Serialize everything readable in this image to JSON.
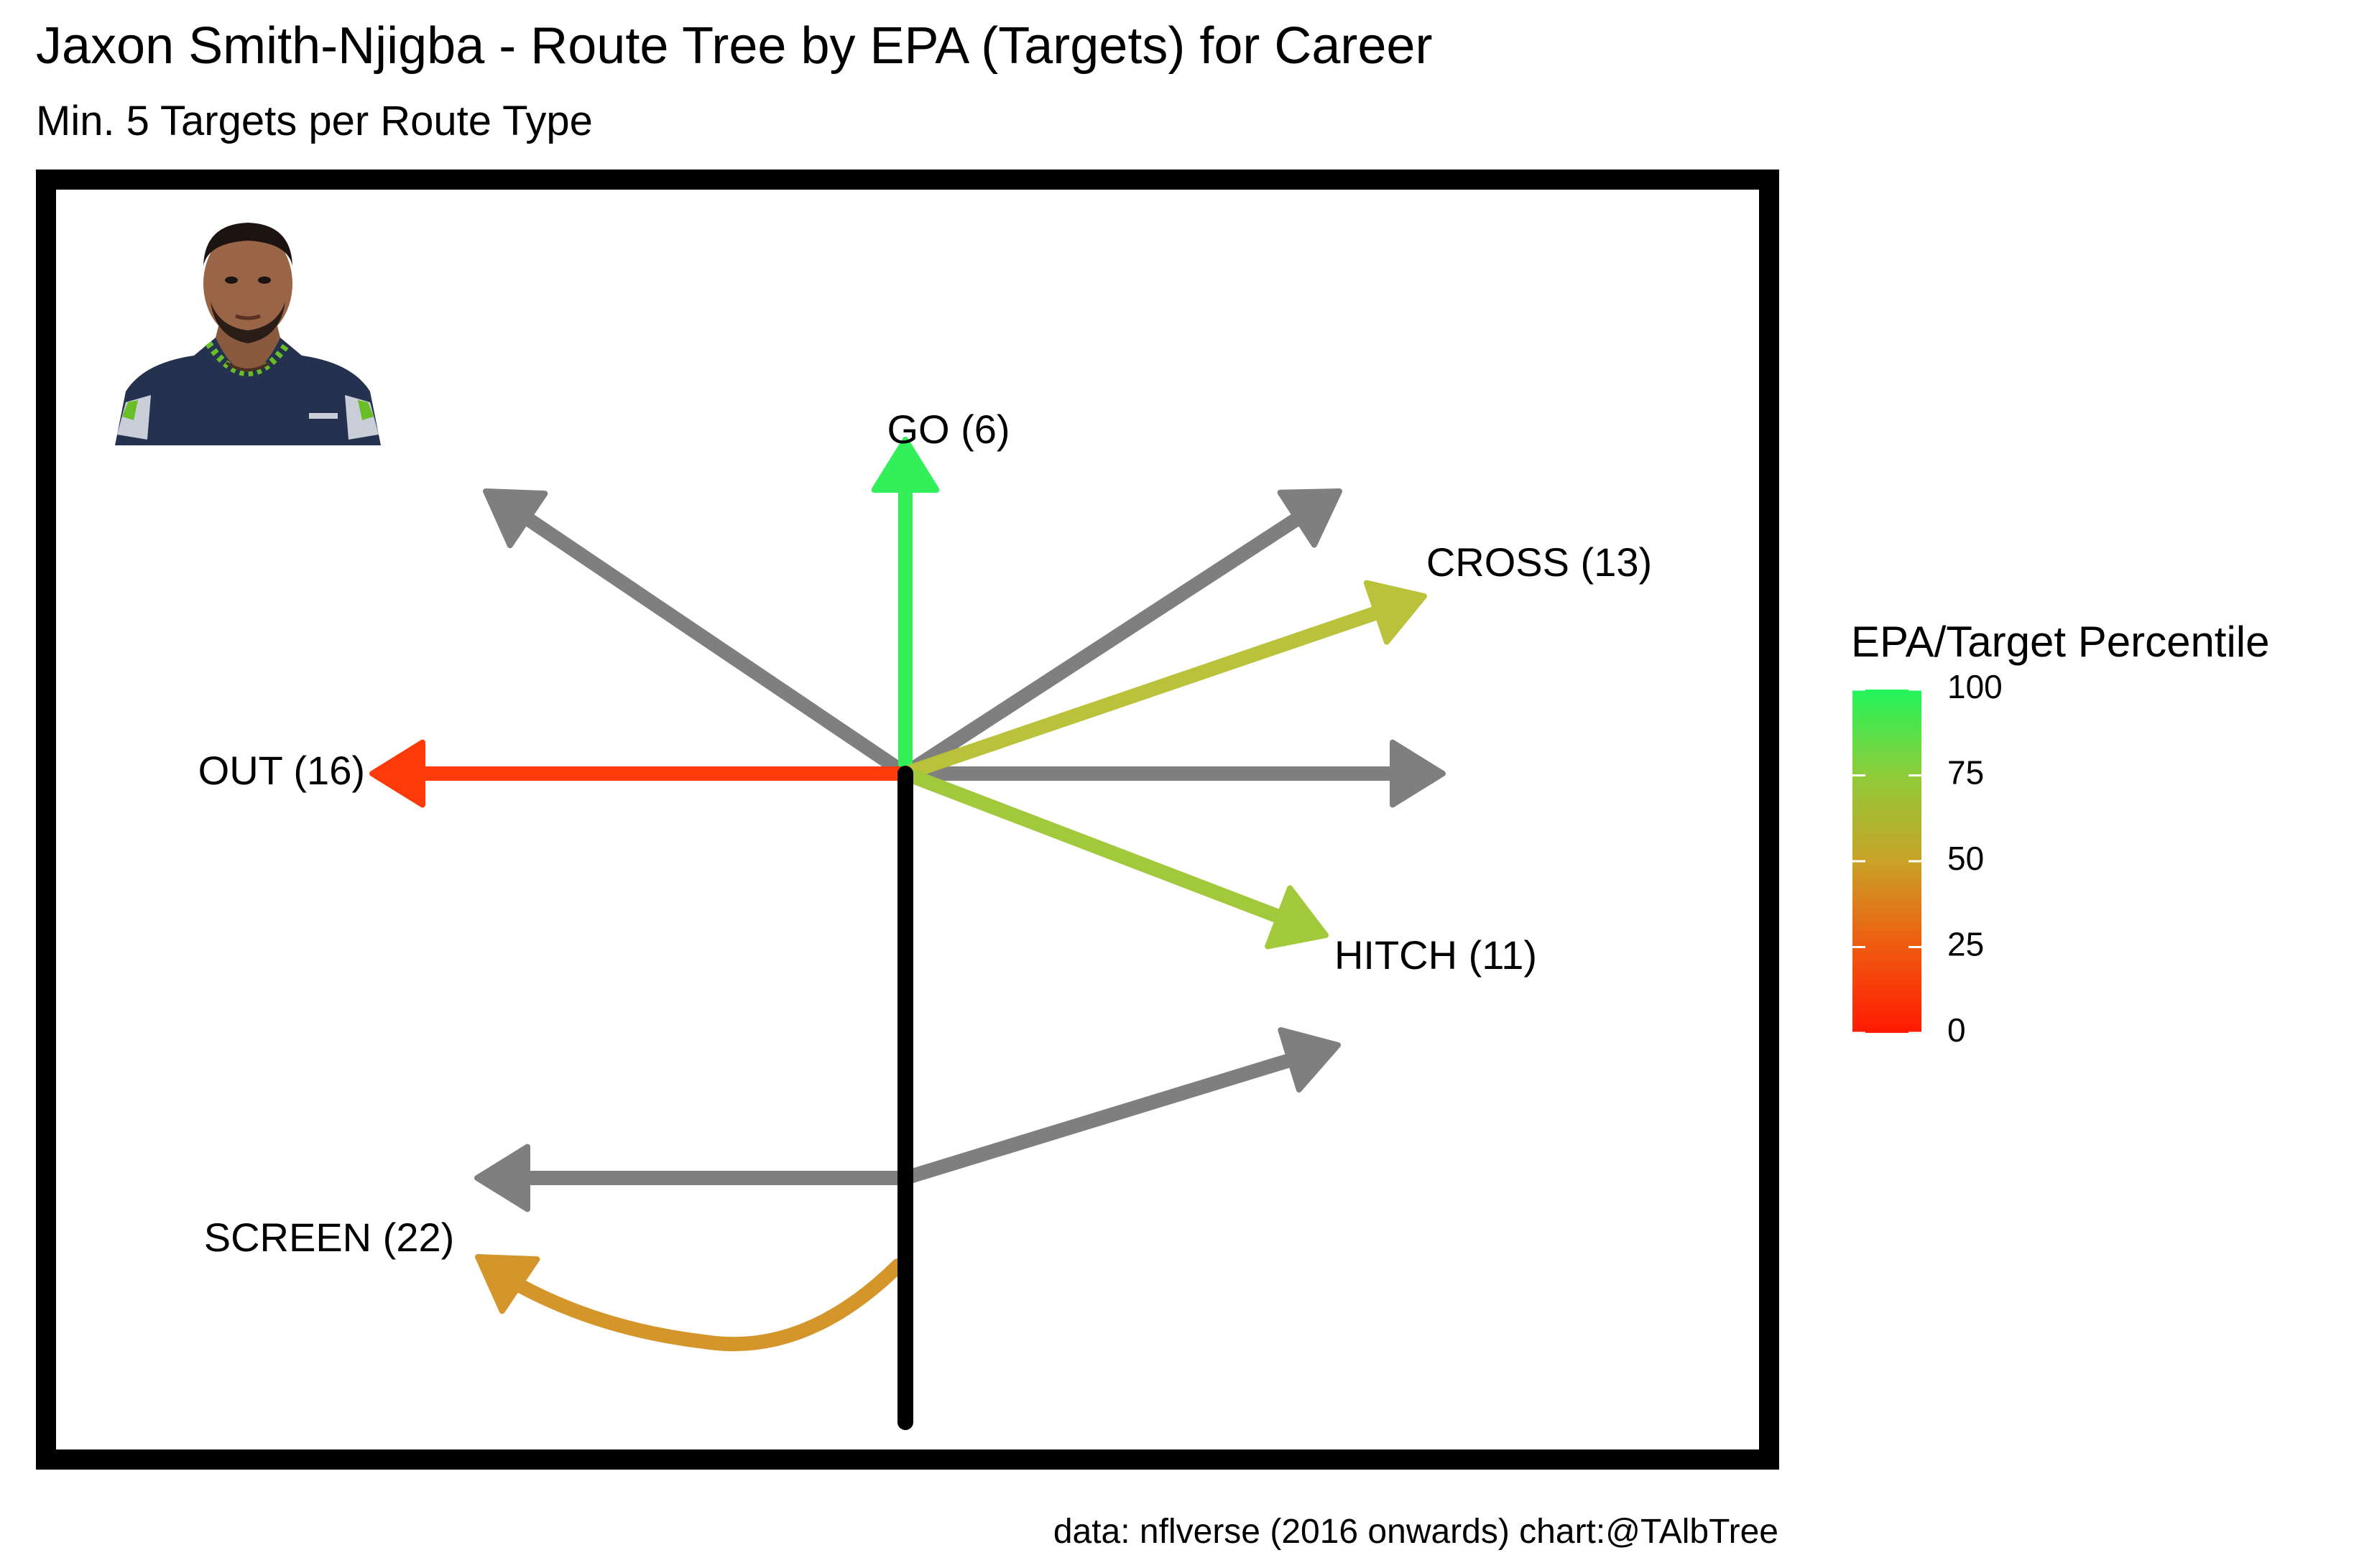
{
  "chart_data": {
    "type": "route-tree",
    "title": "Jaxon Smith-Njigba - Route Tree by EPA (Targets) for Career",
    "subtitle": "Min. 5 Targets per Route Type",
    "caption": "data: nflverse (2016 onwards)  chart:@TAlbTree",
    "colors": {
      "low": "#ff2a00",
      "mid": "#d4952a",
      "high": "#22f55a",
      "not_qualified": "#7f7f7f",
      "stem": "#000000",
      "frame": "#000000"
    },
    "legend": {
      "title": "EPA/Target Percentile",
      "placement": "right",
      "range": [
        0,
        100
      ],
      "ticks": [
        0,
        25,
        50,
        75,
        100
      ]
    },
    "player_image": {
      "icon": "player-headshot"
    },
    "routes": [
      {
        "route": "GO",
        "targets": 6,
        "label": "GO (6)",
        "percentile": 98,
        "color": "#33f05a"
      },
      {
        "route": "CROSS",
        "targets": 13,
        "label": "CROSS (13)",
        "percentile": 70,
        "color": "#b9c23a"
      },
      {
        "route": "OUT",
        "targets": 16,
        "label": "OUT (16)",
        "percentile": 2,
        "color": "#ff3a0a"
      },
      {
        "route": "HITCH",
        "targets": 11,
        "label": "HITCH (11)",
        "percentile": 75,
        "color": "#a2c93c"
      },
      {
        "route": "SCREEN",
        "targets": 22,
        "label": "SCREEN (22)",
        "percentile": 48,
        "color": "#d4952a"
      },
      {
        "route": "CORNER",
        "targets": null,
        "label": "",
        "percentile": null,
        "color": "#7f7f7f"
      },
      {
        "route": "POST",
        "targets": null,
        "label": "",
        "percentile": null,
        "color": "#7f7f7f"
      },
      {
        "route": "IN",
        "targets": null,
        "label": "",
        "percentile": null,
        "color": "#7f7f7f"
      },
      {
        "route": "SLANT",
        "targets": null,
        "label": "",
        "percentile": null,
        "color": "#7f7f7f"
      },
      {
        "route": "FLAT",
        "targets": null,
        "label": "",
        "percentile": null,
        "color": "#7f7f7f"
      }
    ]
  }
}
